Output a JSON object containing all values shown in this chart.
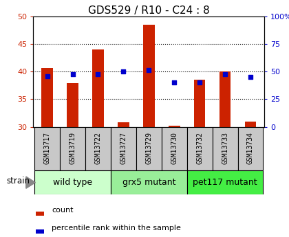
{
  "title": "GDS529 / R10 - C24 : 8",
  "samples": [
    "GSM13717",
    "GSM13719",
    "GSM13722",
    "GSM13727",
    "GSM13729",
    "GSM13730",
    "GSM13732",
    "GSM13733",
    "GSM13734"
  ],
  "bar_values": [
    40.7,
    37.9,
    44.0,
    30.8,
    48.5,
    30.2,
    38.5,
    40.0,
    30.9
  ],
  "bar_bottom": 30,
  "dot_values_left": [
    39.2,
    39.6,
    39.5,
    40.0,
    40.3,
    38.0,
    38.1,
    39.6,
    39.0
  ],
  "ylim_left": [
    30,
    50
  ],
  "ylim_right": [
    0,
    100
  ],
  "yticks_left": [
    30,
    35,
    40,
    45,
    50
  ],
  "yticks_right": [
    0,
    25,
    50,
    75,
    100
  ],
  "ytick_labels_right": [
    "0",
    "25",
    "50",
    "75",
    "100%"
  ],
  "bar_color": "#cc2200",
  "dot_color": "#0000cc",
  "tick_label_color_left": "#cc2200",
  "tick_label_color_right": "#0000cc",
  "title_fontsize": 11,
  "tick_fontsize": 8,
  "group_label_fontsize": 9,
  "sample_label_fontsize": 7,
  "sample_box_color": "#c8c8c8",
  "groups": [
    {
      "label": "wild type",
      "indices": [
        0,
        1,
        2
      ],
      "color": "#ccffcc"
    },
    {
      "label": "grx5 mutant",
      "indices": [
        3,
        4,
        5
      ],
      "color": "#99ee99"
    },
    {
      "label": "pet117 mutant",
      "indices": [
        6,
        7,
        8
      ],
      "color": "#44ee44"
    }
  ],
  "strain_label": "strain",
  "legend_bar_label": "count",
  "legend_dot_label": "percentile rank within the sample",
  "legend_fontsize": 8
}
